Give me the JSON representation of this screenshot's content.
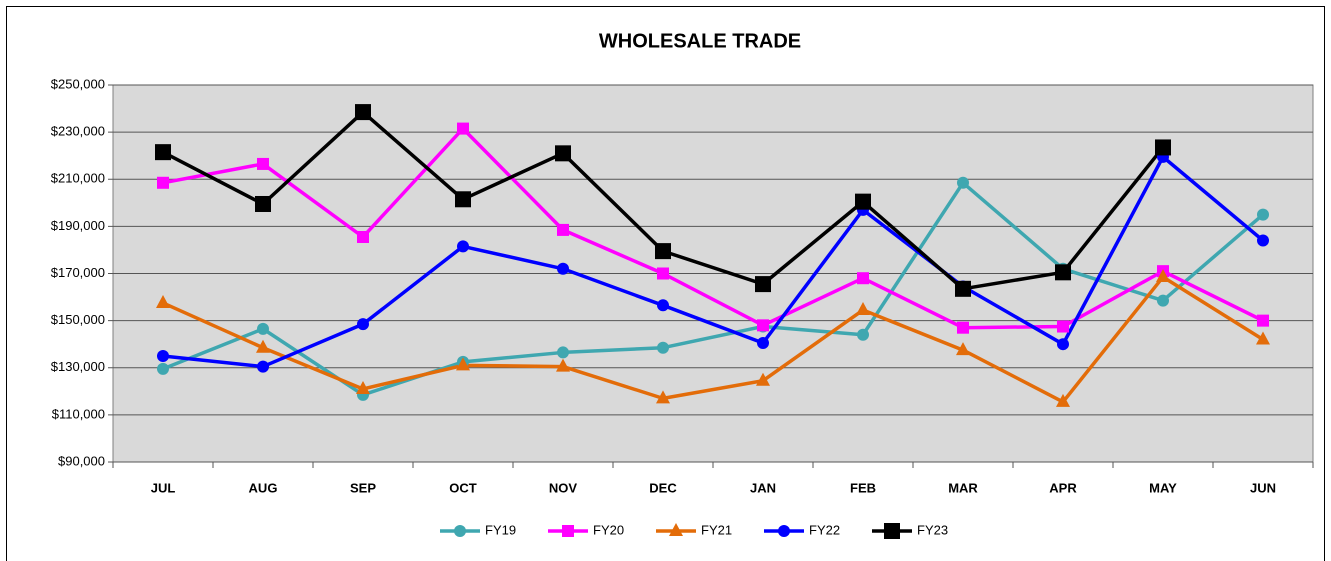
{
  "chart_data": {
    "type": "line",
    "title": "WHOLESALE TRADE",
    "categories": [
      "JUL",
      "AUG",
      "SEP",
      "OCT",
      "NOV",
      "DEC",
      "JAN",
      "FEB",
      "MAR",
      "APR",
      "MAY",
      "JUN"
    ],
    "ylim": [
      90000,
      250000
    ],
    "yticks": [
      {
        "value": 90000,
        "label": "$90,000"
      },
      {
        "value": 110000,
        "label": "$110,000"
      },
      {
        "value": 130000,
        "label": "$130,000"
      },
      {
        "value": 150000,
        "label": "$150,000"
      },
      {
        "value": 170000,
        "label": "$170,000"
      },
      {
        "value": 190000,
        "label": "$190,000"
      },
      {
        "value": 210000,
        "label": "$210,000"
      },
      {
        "value": 230000,
        "label": "$230,000"
      },
      {
        "value": 250000,
        "label": "$250,000"
      }
    ],
    "grid": true,
    "legend": "bottom",
    "series": [
      {
        "name": "FY19",
        "color": "#3fa7b0",
        "marker": "circle",
        "values": [
          129500,
          146500,
          118500,
          132500,
          136500,
          138500,
          147500,
          144000,
          208500,
          172000,
          158500,
          195000
        ]
      },
      {
        "name": "FY20",
        "color": "#ff00ff",
        "marker": "square",
        "values": [
          208500,
          216500,
          185500,
          231500,
          188500,
          170000,
          148000,
          168000,
          147000,
          147500,
          171000,
          150000
        ]
      },
      {
        "name": "FY21",
        "color": "#e36c09",
        "marker": "triangle",
        "values": [
          157500,
          138500,
          121000,
          131000,
          130500,
          117000,
          124500,
          154500,
          137500,
          115500,
          168500,
          142000
        ]
      },
      {
        "name": "FY22",
        "color": "#0000ff",
        "marker": "circle",
        "values": [
          135000,
          130500,
          148500,
          181500,
          172000,
          156500,
          140500,
          197000,
          164500,
          140000,
          219500,
          184000
        ]
      },
      {
        "name": "FY23",
        "color": "#000000",
        "marker": "bigsquare",
        "values": [
          221500,
          199500,
          238500,
          201500,
          221000,
          179500,
          165500,
          200500,
          163500,
          170500,
          223500,
          null
        ]
      }
    ]
  }
}
